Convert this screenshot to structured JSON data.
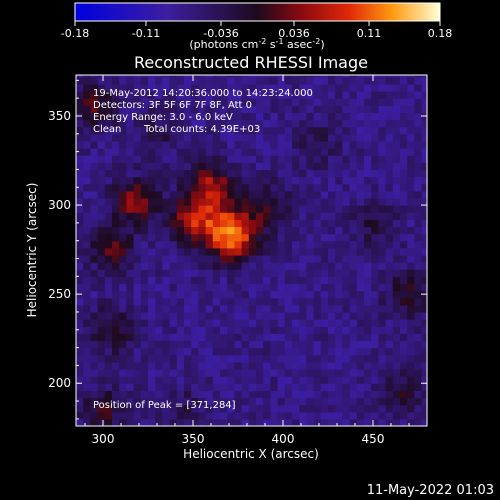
{
  "chart_data": {
    "type": "heatmap",
    "title": "Reconstructed RHESSI Image",
    "xlabel": "Heliocentric X (arcsec)",
    "ylabel": "Heliocentric Y (arcsec)",
    "xlim": [
      285,
      480
    ],
    "ylim": [
      176,
      373
    ],
    "xticks": [
      300,
      350,
      400,
      450
    ],
    "yticks": [
      200,
      250,
      300,
      350
    ],
    "colorbar": {
      "min": -0.18,
      "max": 0.18,
      "tick_labels": [
        "-0.18",
        "-0.11",
        "-0.036",
        "0.036",
        "0.11",
        "0.18"
      ],
      "tick_values": [
        -0.18,
        -0.11,
        -0.036,
        0.036,
        0.11,
        0.18
      ],
      "unit_text": "(photons cm",
      "unit_exp1": "-2",
      "unit_mid": " s",
      "unit_exp2": "-1",
      "unit_mid2": " asec",
      "unit_exp3": "-2",
      "unit_close": ")"
    },
    "peak": {
      "x": 371,
      "y": 284,
      "value": 0.18
    },
    "sources": [
      {
        "x": 371,
        "y": 284,
        "value": 0.18
      },
      {
        "x": 350,
        "y": 292,
        "value": 0.1
      },
      {
        "x": 360,
        "y": 310,
        "value": 0.11
      },
      {
        "x": 318,
        "y": 302,
        "value": 0.09
      },
      {
        "x": 305,
        "y": 275,
        "value": 0.06
      },
      {
        "x": 295,
        "y": 355,
        "value": 0.06
      },
      {
        "x": 392,
        "y": 300,
        "value": 0.05
      },
      {
        "x": 305,
        "y": 230,
        "value": 0.05
      },
      {
        "x": 300,
        "y": 185,
        "value": 0.05
      },
      {
        "x": 470,
        "y": 250,
        "value": 0.05
      },
      {
        "x": 465,
        "y": 195,
        "value": 0.04
      },
      {
        "x": 450,
        "y": 290,
        "value": 0.03
      },
      {
        "x": 345,
        "y": 185,
        "value": 0.02
      },
      {
        "x": 330,
        "y": 340,
        "value": 0.02
      },
      {
        "x": 420,
        "y": 335,
        "value": 0.02
      }
    ],
    "background_value": -0.07
  },
  "annotations": {
    "time_range": "19-May-2012 14:20:36.000 to 14:23:24.000",
    "detectors": "Detectors: 3F 5F 6F 7F 8F, Att 0",
    "energy_range": "Energy Range: 3.0 - 6.0 keV",
    "method": "Clean",
    "total_counts": "Total counts: 4.39E+03",
    "peak_position": "Position of Peak = [371,284]"
  },
  "footer": {
    "date": "11-May-2022 01:03"
  }
}
